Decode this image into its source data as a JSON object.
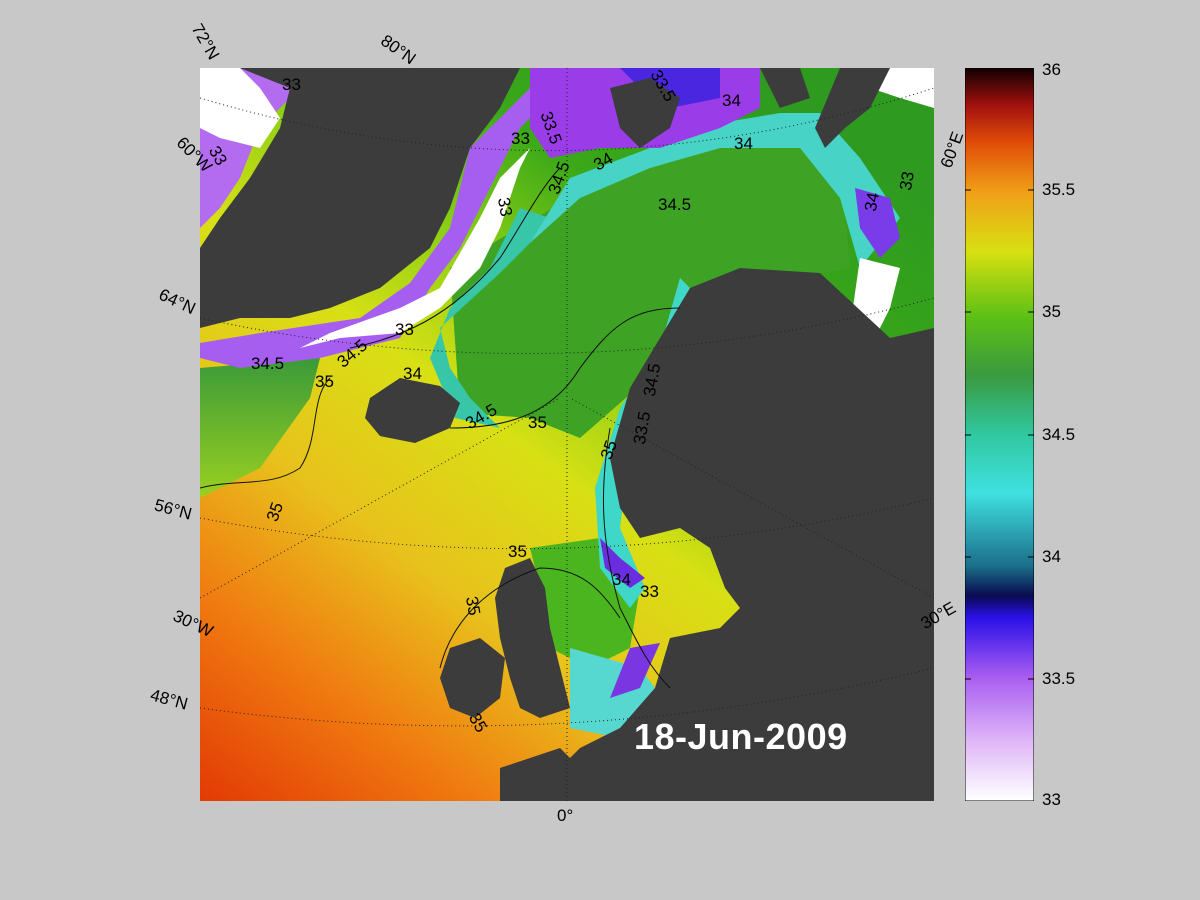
{
  "date": "18-Jun-2009",
  "graticule_labels": {
    "lat_72": "72°N",
    "lat_64": "64°N",
    "lat_56": "56°N",
    "lat_48": "48°N",
    "lon_80n": "80°N",
    "lon_60w": "60°W",
    "lon_30w": "30°W",
    "lon_0": "0°",
    "lon_30e": "30°E",
    "lon_60e": "60°E"
  },
  "contour_labels": [
    "33",
    "33",
    "33",
    "33",
    "33",
    "33",
    "33.5",
    "33.5",
    "34",
    "34",
    "34",
    "34",
    "34",
    "34.5",
    "34.5",
    "34.5",
    "34.5",
    "34.5",
    "34.5",
    "35",
    "35",
    "35",
    "35",
    "35",
    "35",
    "35",
    "33.5",
    "34",
    "33"
  ],
  "colorbar": {
    "min": 33,
    "max": 36,
    "ticks": [
      "36",
      "35.5",
      "35",
      "34.5",
      "34",
      "33.5",
      "33"
    ]
  },
  "colors": {
    "land": "#3c3c3c",
    "ice_or_nodata": "#ffffff",
    "figure_background": "#c8c8c8"
  }
}
